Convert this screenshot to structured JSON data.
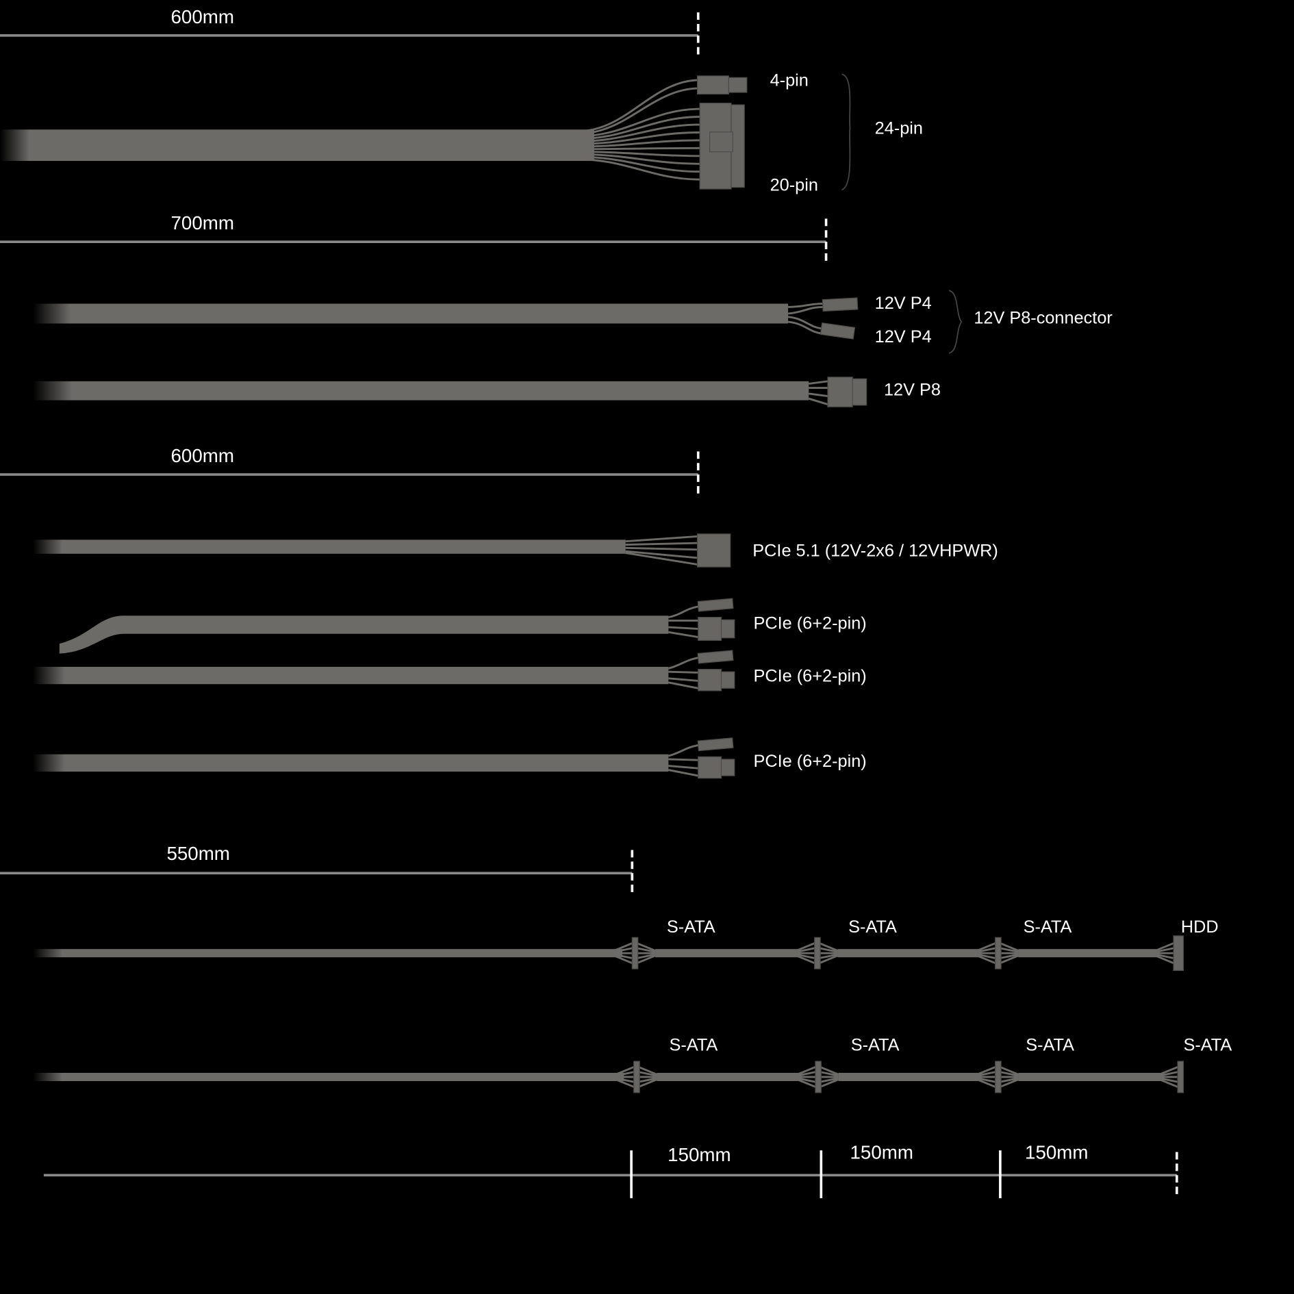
{
  "colors": {
    "background": "#000000",
    "cable": "#6d6b68",
    "text": "#ffffff",
    "measure_line": "#8a8a8a"
  },
  "sections": {
    "atx": {
      "length": "600mm",
      "labels": {
        "four_pin": "4-pin",
        "twenty_pin": "20-pin",
        "total": "24-pin"
      }
    },
    "cpu": {
      "length": "700mm",
      "labels": {
        "p4_a": "12V P4",
        "p4_b": "12V P4",
        "p8_connector": "12V P8-connector",
        "p8": "12V P8"
      }
    },
    "pcie": {
      "length": "600mm",
      "labels": {
        "pcie51": "PCIe 5.1 (12V-2x6 / 12VHPWR)",
        "pcie_a": "PCIe (6+2-pin)",
        "pcie_b": "PCIe (6+2-pin)",
        "pcie_c": "PCIe (6+2-pin)"
      }
    },
    "sata": {
      "length": "550mm",
      "cable1": [
        "S-ATA",
        "S-ATA",
        "S-ATA",
        "HDD"
      ],
      "cable2": [
        "S-ATA",
        "S-ATA",
        "S-ATA",
        "S-ATA"
      ],
      "spacing": [
        "150mm",
        "150mm",
        "150mm"
      ]
    }
  }
}
